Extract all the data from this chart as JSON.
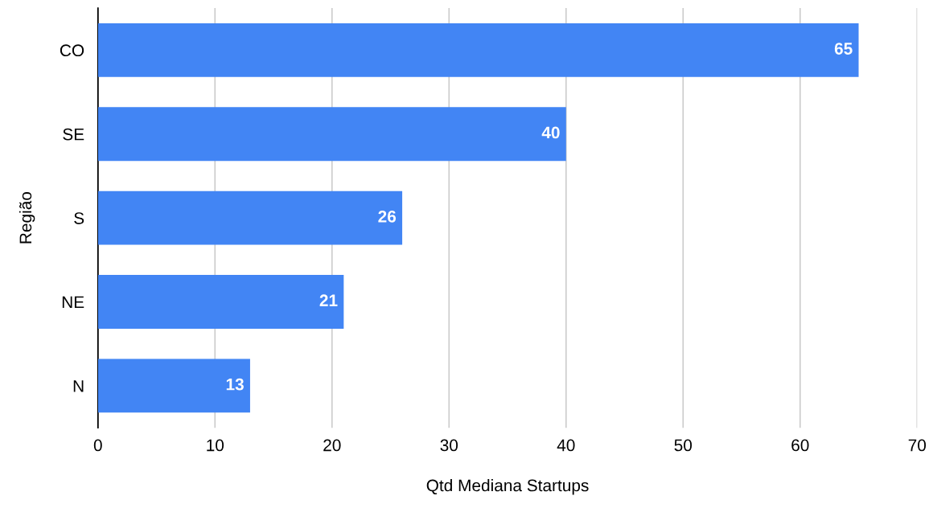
{
  "chart_data": {
    "type": "bar",
    "orientation": "horizontal",
    "xlabel": "Qtd Mediana Startups",
    "ylabel": "Região",
    "categories": [
      "CO",
      "SE",
      "S",
      "NE",
      "N"
    ],
    "values": [
      65,
      40,
      26,
      21,
      13
    ],
    "color": "#4285f4",
    "xlim": [
      0,
      70
    ],
    "xticks": [
      0,
      10,
      20,
      30,
      40,
      50,
      60,
      70
    ],
    "grid": "x",
    "data_labels": true
  }
}
